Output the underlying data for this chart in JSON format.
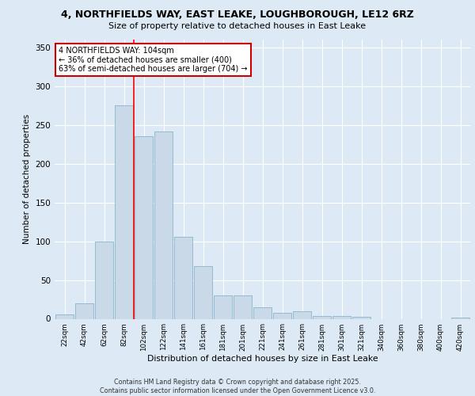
{
  "title_line1": "4, NORTHFIELDS WAY, EAST LEAKE, LOUGHBOROUGH, LE12 6RZ",
  "title_line2": "Size of property relative to detached houses in East Leake",
  "xlabel": "Distribution of detached houses by size in East Leake",
  "ylabel": "Number of detached properties",
  "bar_labels": [
    "22sqm",
    "42sqm",
    "62sqm",
    "82sqm",
    "102sqm",
    "122sqm",
    "141sqm",
    "161sqm",
    "181sqm",
    "201sqm",
    "221sqm",
    "241sqm",
    "261sqm",
    "281sqm",
    "301sqm",
    "321sqm",
    "340sqm",
    "360sqm",
    "380sqm",
    "400sqm",
    "420sqm"
  ],
  "bar_values": [
    6,
    20,
    100,
    275,
    235,
    242,
    106,
    68,
    30,
    30,
    15,
    8,
    10,
    4,
    4,
    3,
    0,
    0,
    0,
    0,
    2
  ],
  "bar_color": "#c9d9e8",
  "bar_edgecolor": "#8ab4cc",
  "background_color": "#ddeaf5",
  "grid_color": "#ffffff",
  "redline_index": 4,
  "redline_label": "4 NORTHFIELDS WAY: 104sqm",
  "annotation_line2": "← 36% of detached houses are smaller (400)",
  "annotation_line3": "63% of semi-detached houses are larger (704) →",
  "annotation_box_color": "#ffffff",
  "annotation_box_edgecolor": "#cc0000",
  "ylim": [
    0,
    360
  ],
  "yticks": [
    0,
    50,
    100,
    150,
    200,
    250,
    300,
    350
  ],
  "footer_line1": "Contains HM Land Registry data © Crown copyright and database right 2025.",
  "footer_line2": "Contains public sector information licensed under the Open Government Licence v3.0."
}
